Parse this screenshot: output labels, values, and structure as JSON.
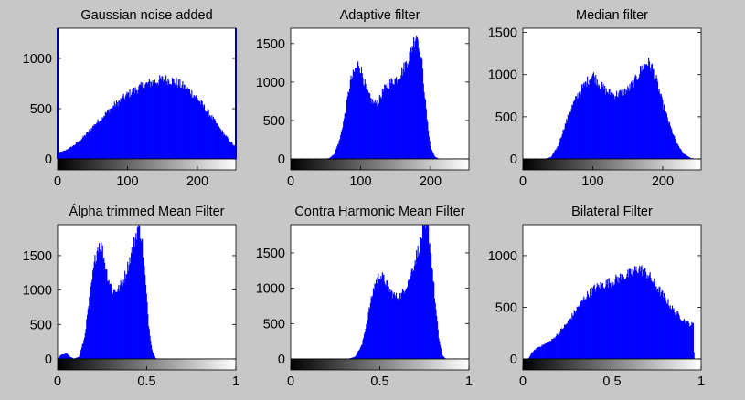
{
  "figure": {
    "background": "#c7c7c7",
    "bar_color": "#0000ff"
  },
  "chart_data": [
    {
      "type": "bar",
      "title": "Gaussian noise added",
      "xlim": [
        0,
        255
      ],
      "ylim": [
        0,
        1300
      ],
      "xticks": [
        {
          "v": 0,
          "label": "0"
        },
        {
          "v": 100,
          "label": "100"
        },
        {
          "v": 200,
          "label": "200"
        }
      ],
      "yticks": [
        {
          "v": 0,
          "label": "0"
        },
        {
          "v": 500,
          "label": "500"
        },
        {
          "v": 1000,
          "label": "1000"
        }
      ],
      "colorbar": true,
      "bins": 256,
      "profile": [
        [
          0,
          60
        ],
        [
          10,
          80
        ],
        [
          20,
          120
        ],
        [
          30,
          170
        ],
        [
          40,
          240
        ],
        [
          50,
          320
        ],
        [
          60,
          390
        ],
        [
          70,
          460
        ],
        [
          80,
          530
        ],
        [
          90,
          580
        ],
        [
          100,
          640
        ],
        [
          110,
          680
        ],
        [
          120,
          720
        ],
        [
          130,
          750
        ],
        [
          140,
          770
        ],
        [
          150,
          790
        ],
        [
          160,
          790
        ],
        [
          170,
          760
        ],
        [
          180,
          720
        ],
        [
          190,
          670
        ],
        [
          200,
          600
        ],
        [
          210,
          510
        ],
        [
          220,
          420
        ],
        [
          230,
          320
        ],
        [
          240,
          230
        ],
        [
          250,
          150
        ],
        [
          255,
          110
        ]
      ],
      "highlight_edges": [
        0,
        255
      ]
    },
    {
      "type": "bar",
      "title": "Adaptive filter",
      "xlim": [
        0,
        255
      ],
      "ylim": [
        0,
        1700
      ],
      "xticks": [
        {
          "v": 0,
          "label": "0"
        },
        {
          "v": 100,
          "label": "100"
        },
        {
          "v": 200,
          "label": "200"
        }
      ],
      "yticks": [
        {
          "v": 0,
          "label": "0"
        },
        {
          "v": 500,
          "label": "500"
        },
        {
          "v": 1000,
          "label": "1000"
        },
        {
          "v": 1500,
          "label": "1500"
        }
      ],
      "colorbar": true,
      "bins": 256,
      "profile": [
        [
          0,
          0
        ],
        [
          45,
          0
        ],
        [
          55,
          10
        ],
        [
          62,
          60
        ],
        [
          70,
          250
        ],
        [
          78,
          600
        ],
        [
          85,
          1000
        ],
        [
          92,
          1150
        ],
        [
          97,
          1250
        ],
        [
          102,
          1120
        ],
        [
          108,
          900
        ],
        [
          114,
          780
        ],
        [
          120,
          720
        ],
        [
          126,
          760
        ],
        [
          132,
          880
        ],
        [
          138,
          960
        ],
        [
          145,
          1010
        ],
        [
          152,
          1050
        ],
        [
          160,
          1150
        ],
        [
          168,
          1300
        ],
        [
          174,
          1480
        ],
        [
          180,
          1640
        ],
        [
          186,
          1400
        ],
        [
          190,
          1000
        ],
        [
          195,
          500
        ],
        [
          200,
          150
        ],
        [
          206,
          30
        ],
        [
          212,
          0
        ],
        [
          255,
          0
        ]
      ]
    },
    {
      "type": "bar",
      "title": "Median filter",
      "xlim": [
        0,
        255
      ],
      "ylim": [
        0,
        1550
      ],
      "xticks": [
        {
          "v": 0,
          "label": "0"
        },
        {
          "v": 100,
          "label": "100"
        },
        {
          "v": 200,
          "label": "200"
        }
      ],
      "yticks": [
        {
          "v": 0,
          "label": "0"
        },
        {
          "v": 500,
          "label": "500"
        },
        {
          "v": 1000,
          "label": "1000"
        },
        {
          "v": 1500,
          "label": "1500"
        }
      ],
      "colorbar": true,
      "bins": 256,
      "profile": [
        [
          0,
          0
        ],
        [
          30,
          0
        ],
        [
          40,
          20
        ],
        [
          50,
          150
        ],
        [
          60,
          400
        ],
        [
          70,
          620
        ],
        [
          80,
          780
        ],
        [
          90,
          900
        ],
        [
          100,
          1000
        ],
        [
          110,
          880
        ],
        [
          120,
          800
        ],
        [
          130,
          760
        ],
        [
          140,
          780
        ],
        [
          150,
          820
        ],
        [
          160,
          920
        ],
        [
          170,
          1080
        ],
        [
          178,
          1150
        ],
        [
          185,
          1080
        ],
        [
          192,
          900
        ],
        [
          200,
          650
        ],
        [
          210,
          400
        ],
        [
          220,
          180
        ],
        [
          230,
          60
        ],
        [
          240,
          10
        ],
        [
          250,
          0
        ],
        [
          255,
          0
        ]
      ]
    },
    {
      "type": "bar",
      "title": "Álpha trimmed Mean Filter",
      "xlim": [
        0,
        1
      ],
      "ylim": [
        0,
        1950
      ],
      "xticks": [
        {
          "v": 0,
          "label": "0"
        },
        {
          "v": 0.5,
          "label": "0.5"
        },
        {
          "v": 1,
          "label": "1"
        }
      ],
      "yticks": [
        {
          "v": 0,
          "label": "0"
        },
        {
          "v": 500,
          "label": "500"
        },
        {
          "v": 1000,
          "label": "1000"
        },
        {
          "v": 1500,
          "label": "1500"
        }
      ],
      "colorbar": true,
      "bins": 256,
      "profile": [
        [
          0,
          10
        ],
        [
          0.02,
          60
        ],
        [
          0.05,
          80
        ],
        [
          0.07,
          30
        ],
        [
          0.09,
          5
        ],
        [
          0.12,
          30
        ],
        [
          0.15,
          300
        ],
        [
          0.18,
          900
        ],
        [
          0.21,
          1450
        ],
        [
          0.23,
          1680
        ],
        [
          0.25,
          1600
        ],
        [
          0.28,
          1200
        ],
        [
          0.31,
          980
        ],
        [
          0.34,
          1010
        ],
        [
          0.37,
          1150
        ],
        [
          0.4,
          1400
        ],
        [
          0.43,
          1700
        ],
        [
          0.45,
          1920
        ],
        [
          0.47,
          1800
        ],
        [
          0.49,
          1200
        ],
        [
          0.51,
          500
        ],
        [
          0.53,
          120
        ],
        [
          0.55,
          10
        ],
        [
          0.57,
          0
        ],
        [
          1,
          0
        ]
      ]
    },
    {
      "type": "bar",
      "title": "Contra Harmonic Mean Filter",
      "xlim": [
        0,
        1
      ],
      "ylim": [
        0,
        1900
      ],
      "xticks": [
        {
          "v": 0,
          "label": "0"
        },
        {
          "v": 0.5,
          "label": "0.5"
        },
        {
          "v": 1,
          "label": "1"
        }
      ],
      "yticks": [
        {
          "v": 0,
          "label": "0"
        },
        {
          "v": 500,
          "label": "500"
        },
        {
          "v": 1000,
          "label": "1000"
        },
        {
          "v": 1500,
          "label": "1500"
        }
      ],
      "colorbar": true,
      "bins": 256,
      "profile": [
        [
          0,
          0
        ],
        [
          0.32,
          0
        ],
        [
          0.36,
          30
        ],
        [
          0.4,
          200
        ],
        [
          0.44,
          700
        ],
        [
          0.47,
          1050
        ],
        [
          0.5,
          1200
        ],
        [
          0.53,
          1100
        ],
        [
          0.56,
          950
        ],
        [
          0.59,
          880
        ],
        [
          0.62,
          900
        ],
        [
          0.65,
          1050
        ],
        [
          0.68,
          1250
        ],
        [
          0.71,
          1500
        ],
        [
          0.74,
          1800
        ],
        [
          0.77,
          1850
        ],
        [
          0.79,
          1400
        ],
        [
          0.81,
          800
        ],
        [
          0.83,
          300
        ],
        [
          0.85,
          50
        ],
        [
          0.87,
          0
        ],
        [
          1,
          0
        ]
      ]
    },
    {
      "type": "bar",
      "title": "Bilateral Filter",
      "xlim": [
        0,
        1
      ],
      "ylim": [
        0,
        1300
      ],
      "xticks": [
        {
          "v": 0,
          "label": "0"
        },
        {
          "v": 0.5,
          "label": "0.5"
        },
        {
          "v": 1,
          "label": "1"
        }
      ],
      "yticks": [
        {
          "v": 0,
          "label": "0"
        },
        {
          "v": 500,
          "label": "500"
        },
        {
          "v": 1000,
          "label": "1000"
        }
      ],
      "colorbar": true,
      "bins": 256,
      "profile": [
        [
          0,
          0
        ],
        [
          0.03,
          0
        ],
        [
          0.05,
          60
        ],
        [
          0.08,
          110
        ],
        [
          0.12,
          140
        ],
        [
          0.16,
          180
        ],
        [
          0.2,
          250
        ],
        [
          0.25,
          350
        ],
        [
          0.3,
          480
        ],
        [
          0.35,
          600
        ],
        [
          0.4,
          680
        ],
        [
          0.45,
          720
        ],
        [
          0.5,
          750
        ],
        [
          0.55,
          790
        ],
        [
          0.6,
          820
        ],
        [
          0.65,
          880
        ],
        [
          0.7,
          820
        ],
        [
          0.75,
          700
        ],
        [
          0.8,
          580
        ],
        [
          0.85,
          460
        ],
        [
          0.9,
          380
        ],
        [
          0.94,
          330
        ],
        [
          0.955,
          340
        ],
        [
          0.96,
          0
        ],
        [
          1,
          0
        ]
      ]
    }
  ]
}
